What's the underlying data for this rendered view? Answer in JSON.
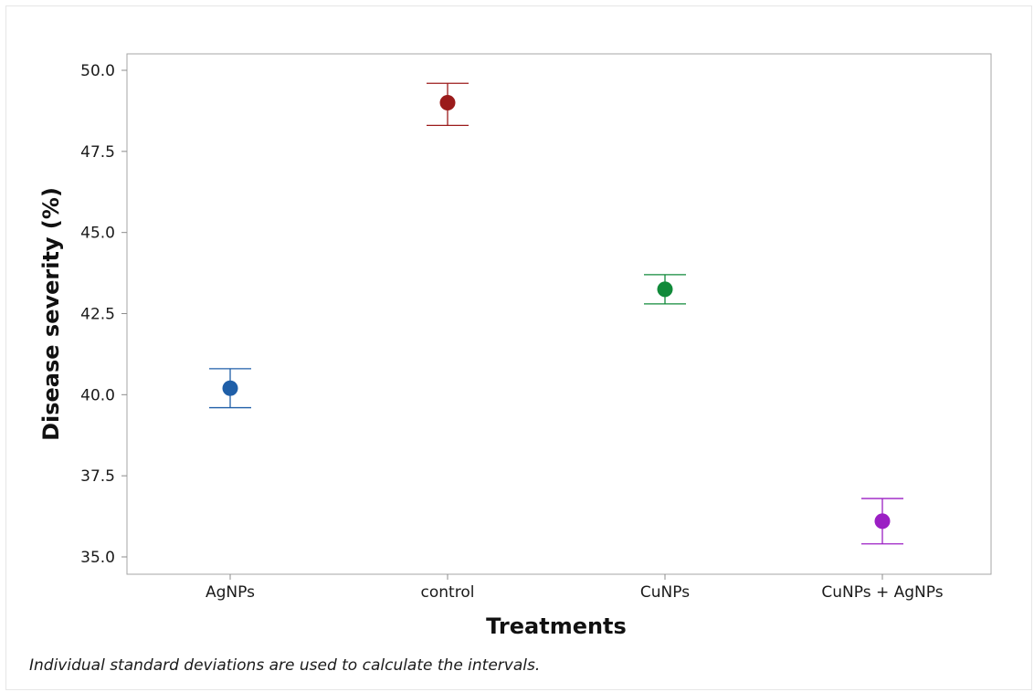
{
  "chart_data": {
    "type": "scatter",
    "title": "",
    "xlabel": "Treatments",
    "ylabel": "Disease severity (%)",
    "ylim": [
      35.0,
      50.0
    ],
    "yticks": [
      "35.0",
      "37.5",
      "40.0",
      "42.5",
      "45.0",
      "47.5",
      "50.0"
    ],
    "categories": [
      "AgNPs",
      "control",
      "CuNPs",
      "CuNPs + AgNPs"
    ],
    "points": [
      {
        "category": "AgNPs",
        "mean": 40.2,
        "lower": 39.6,
        "upper": 40.8,
        "color": "#1f5fa8"
      },
      {
        "category": "control",
        "mean": 49.0,
        "lower": 48.3,
        "upper": 49.6,
        "color": "#9b1b1b"
      },
      {
        "category": "CuNPs",
        "mean": 43.25,
        "lower": 42.8,
        "upper": 43.7,
        "color": "#118a3a"
      },
      {
        "category": "CuNPs + AgNPs",
        "mean": 36.1,
        "lower": 35.4,
        "upper": 36.8,
        "color": "#9b1fc4"
      }
    ],
    "grid": false,
    "legend": "none"
  },
  "footnote": "Individual standard deviations are used to calculate the intervals."
}
